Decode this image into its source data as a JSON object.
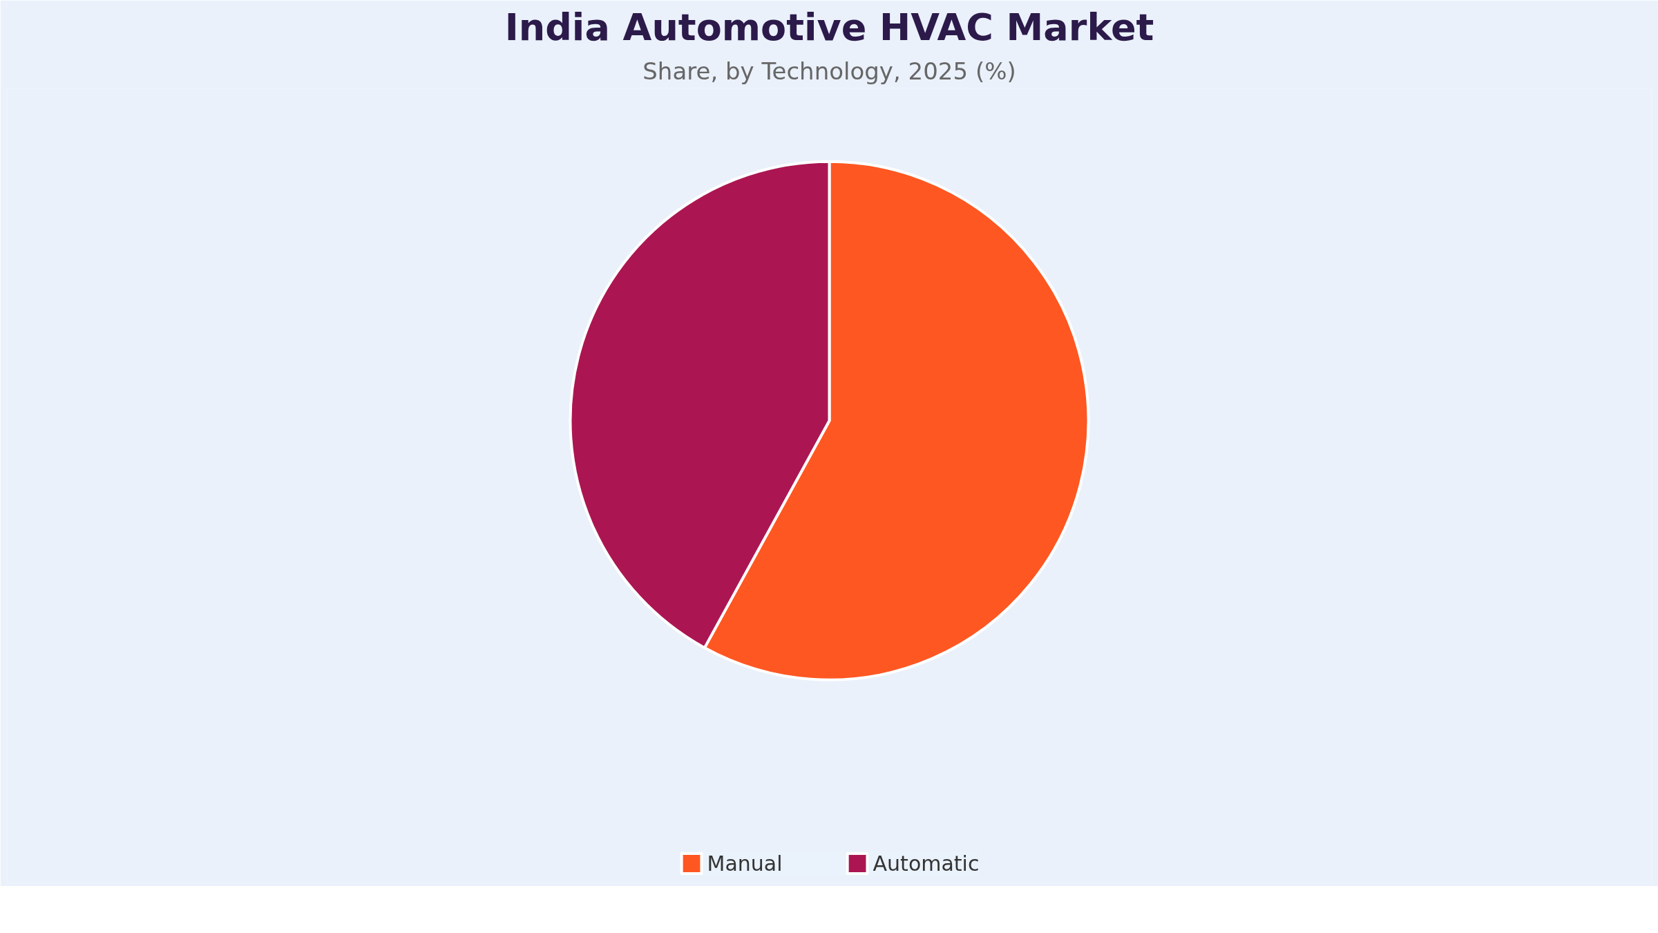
{
  "chart_data": {
    "type": "pie",
    "title": "India Automotive HVAC Market",
    "subtitle": "Share, by Technology, 2025 (%)",
    "categories": [
      "Manual",
      "Automatic"
    ],
    "values": [
      58,
      42
    ],
    "colors": [
      "#ff5722",
      "#ab1652"
    ],
    "legend": "bottom"
  }
}
